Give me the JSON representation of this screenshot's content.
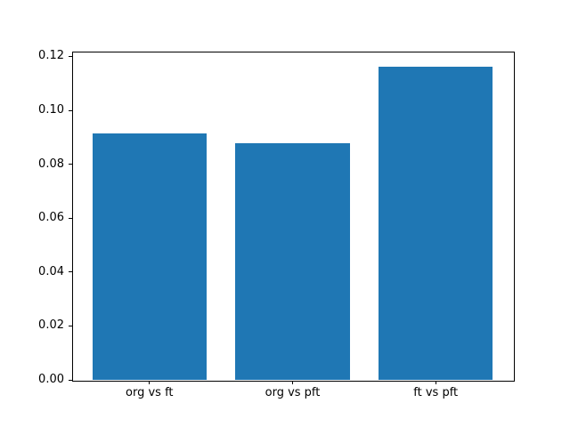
{
  "chart_data": {
    "type": "bar",
    "title": "",
    "xlabel": "",
    "ylabel": "",
    "categories": [
      "org vs ft",
      "org vs pft",
      "ft vs pft"
    ],
    "values": [
      0.0914,
      0.0878,
      0.1161
    ],
    "bar_color": "#1f77b4",
    "background_color": "#ffffff",
    "spine_color": "#000000",
    "bar_width_data_units": 0.8,
    "xlim": [
      -0.54,
      2.54
    ],
    "ylim": [
      0,
      0.1218
    ],
    "yticks": [
      {
        "value": 0.0,
        "label": "0.00"
      },
      {
        "value": 0.02,
        "label": "0.02"
      },
      {
        "value": 0.04,
        "label": "0.04"
      },
      {
        "value": 0.06,
        "label": "0.06"
      },
      {
        "value": 0.08,
        "label": "0.08"
      },
      {
        "value": 0.1,
        "label": "0.10"
      },
      {
        "value": 0.12,
        "label": "0.12"
      }
    ],
    "grid": false,
    "legend": null
  }
}
